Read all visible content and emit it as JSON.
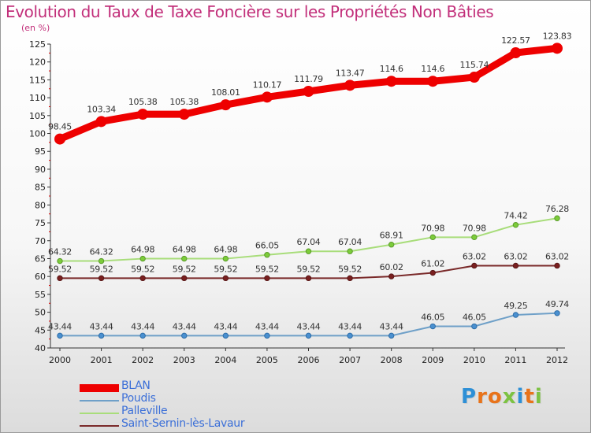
{
  "title": "Evolution du Taux de Taxe Foncière sur les Propriétés Non Bâties",
  "unit_label": "(en %)",
  "brand": "Proxiti",
  "chart_data": {
    "type": "line",
    "x": [
      "2000",
      "2001",
      "2002",
      "2003",
      "2004",
      "2005",
      "2006",
      "2007",
      "2008",
      "2009",
      "2010",
      "2011",
      "2012"
    ],
    "ylim": [
      40,
      125
    ],
    "yticks": [
      40,
      45,
      50,
      55,
      60,
      65,
      70,
      75,
      80,
      85,
      90,
      95,
      100,
      105,
      110,
      115,
      120,
      125
    ],
    "grid": false,
    "legend_position": "bottom-left",
    "series": [
      {
        "name": "BLAN",
        "color": "#ee0000",
        "values": [
          98.45,
          103.34,
          105.38,
          105.38,
          108.01,
          110.17,
          111.79,
          113.47,
          114.6,
          114.6,
          115.74,
          122.57,
          123.83
        ],
        "labels": [
          "98.45",
          "103.34",
          "105.38",
          "105.38",
          "108.01",
          "110.17",
          "111.79",
          "113.47",
          "114.6",
          "114.6",
          "115.74",
          "122.57",
          "123.83"
        ]
      },
      {
        "name": "Poudis",
        "color": "#6fa0c8",
        "values": [
          43.44,
          43.44,
          43.44,
          43.44,
          43.44,
          43.44,
          43.44,
          43.44,
          43.44,
          46.05,
          46.05,
          49.25,
          49.74
        ],
        "labels": [
          "43.44",
          "43.44",
          "43.44",
          "43.44",
          "43.44",
          "43.44",
          "43.44",
          "43.44",
          "43.44",
          "46.05",
          "46.05",
          "49.25",
          "49.74"
        ]
      },
      {
        "name": "Palleville",
        "color": "#a8dd7a",
        "values": [
          64.32,
          64.32,
          64.98,
          64.98,
          64.98,
          66.05,
          67.04,
          67.04,
          68.91,
          70.98,
          70.98,
          74.42,
          76.28
        ],
        "labels": [
          "64.32",
          "64.32",
          "64.98",
          "64.98",
          "64.98",
          "66.05",
          "67.04",
          "67.04",
          "68.91",
          "70.98",
          "70.98",
          "74.42",
          "76.28"
        ]
      },
      {
        "name": "Saint-Sernin-lès-Lavaur",
        "color": "#7a2a2a",
        "values": [
          59.52,
          59.52,
          59.52,
          59.52,
          59.52,
          59.52,
          59.52,
          59.52,
          60.02,
          61.02,
          63.02,
          63.02,
          63.02
        ],
        "labels": [
          "59.52",
          "59.52",
          "59.52",
          "59.52",
          "59.52",
          "59.52",
          "59.52",
          "59.52",
          "60.02",
          "61.02",
          "63.02",
          "63.02",
          "63.02"
        ]
      }
    ]
  }
}
